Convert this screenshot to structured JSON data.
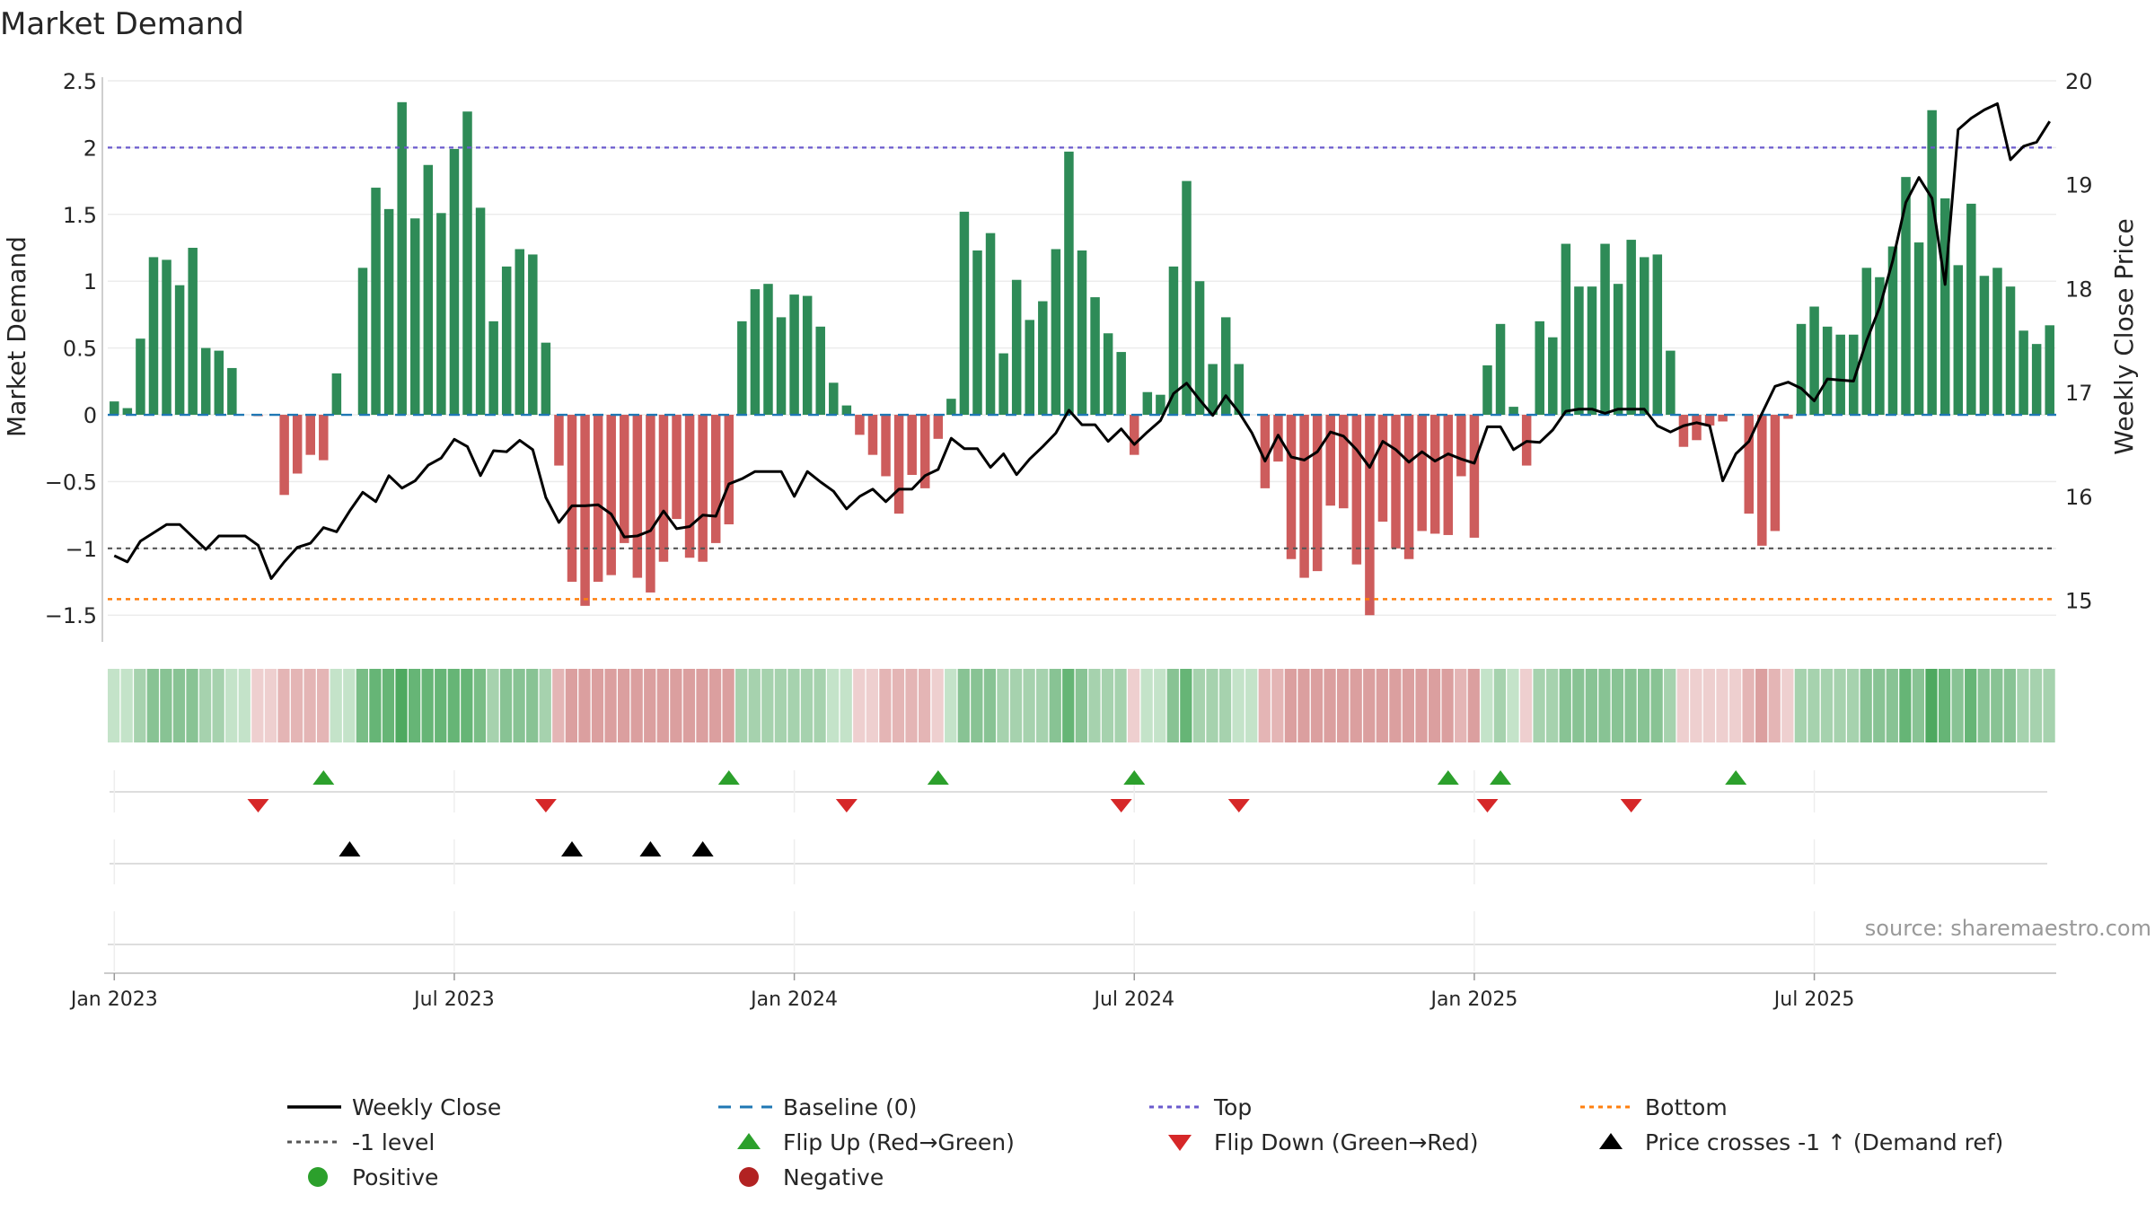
{
  "chart_data": {
    "type": "bar",
    "title": "Market Demand",
    "ylabel": "Market Demand",
    "y2label": "Weekly Close Price",
    "ylim": [
      -1.7,
      2.5
    ],
    "y2lim": [
      14.6,
      20.0
    ],
    "yticks": [
      2.5,
      2,
      1.5,
      1,
      0.5,
      0,
      -0.5,
      -1,
      -1.5
    ],
    "yticklabels": [
      "2.5",
      "2",
      "1.5",
      "1",
      "0.5",
      "0",
      "−0.5",
      "−1",
      "−1.5"
    ],
    "y2ticks": [
      20,
      19,
      18,
      17,
      16,
      15
    ],
    "y2ticklabels": [
      "20",
      "19",
      "18",
      "17",
      "16",
      "15"
    ],
    "xticklabels": [
      "Jan 2023",
      "Jul 2023",
      "Jan 2024",
      "Jul 2024",
      "Jan 2025",
      "Jul 2025"
    ],
    "xtick_positions_week": [
      0.5,
      26.5,
      52.5,
      78.5,
      104.5,
      130.5
    ],
    "reference_lines": {
      "top": 2.0,
      "bottom": -1.38,
      "minus_one": -1.0,
      "baseline": 0
    },
    "demand": [
      0.1,
      0.05,
      0.57,
      1.18,
      1.16,
      0.97,
      1.25,
      0.5,
      0.48,
      0.35,
      0.0,
      -0.01,
      0.0,
      -0.6,
      -0.44,
      -0.3,
      -0.34,
      0.31,
      0.0,
      1.1,
      1.7,
      1.54,
      2.34,
      1.47,
      1.87,
      1.51,
      1.99,
      2.27,
      1.55,
      0.7,
      1.11,
      1.24,
      1.2,
      0.54,
      -0.38,
      -1.25,
      -1.43,
      -1.25,
      -1.2,
      -0.96,
      -1.22,
      -1.33,
      -1.1,
      -0.78,
      -1.07,
      -1.1,
      -0.96,
      -0.82,
      0.7,
      0.94,
      0.98,
      0.73,
      0.9,
      0.89,
      0.66,
      0.24,
      0.07,
      -0.15,
      -0.3,
      -0.46,
      -0.74,
      -0.45,
      -0.55,
      -0.18,
      0.12,
      1.52,
      1.23,
      1.36,
      0.46,
      1.01,
      0.71,
      0.85,
      1.24,
      1.97,
      1.23,
      0.88,
      0.61,
      0.47,
      -0.3,
      0.17,
      0.15,
      1.11,
      1.75,
      1.0,
      0.38,
      0.73,
      0.38,
      0.0,
      -0.55,
      -0.35,
      -1.08,
      -1.22,
      -1.17,
      -0.68,
      -0.7,
      -1.12,
      -1.5,
      -0.8,
      -1.0,
      -1.08,
      -0.87,
      -0.89,
      -0.9,
      -0.46,
      -0.92,
      0.37,
      0.68,
      0.06,
      -0.38,
      0.7,
      0.58,
      1.28,
      0.96,
      0.96,
      1.28,
      0.98,
      1.31,
      1.18,
      1.2,
      0.48,
      -0.24,
      -0.19,
      -0.08,
      -0.05,
      0.0,
      -0.74,
      -0.98,
      -0.87,
      -0.03,
      0.68,
      0.81,
      0.66,
      0.6,
      0.6,
      1.1,
      1.03,
      1.26,
      1.78,
      1.29,
      2.28,
      1.62,
      1.12,
      1.58,
      1.04,
      1.1,
      0.96,
      0.63,
      0.53,
      0.67
    ],
    "weekly_close": [
      15.43,
      15.37,
      15.57,
      15.65,
      15.73,
      15.73,
      15.61,
      15.49,
      15.62,
      15.62,
      15.62,
      15.53,
      15.21,
      15.37,
      15.51,
      15.55,
      15.7,
      15.66,
      15.86,
      16.04,
      15.95,
      16.2,
      16.08,
      16.15,
      16.3,
      16.37,
      16.55,
      16.48,
      16.2,
      16.44,
      16.43,
      16.54,
      16.45,
      15.99,
      15.75,
      15.91,
      15.91,
      15.92,
      15.83,
      15.61,
      15.62,
      15.67,
      15.86,
      15.69,
      15.71,
      15.82,
      15.81,
      16.12,
      16.17,
      16.24,
      16.24,
      16.24,
      16.0,
      16.24,
      16.14,
      16.05,
      15.88,
      16.0,
      16.07,
      15.95,
      16.07,
      16.07,
      16.2,
      16.26,
      16.56,
      16.46,
      16.46,
      16.28,
      16.41,
      16.21,
      16.36,
      16.48,
      16.61,
      16.83,
      16.69,
      16.69,
      16.53,
      16.65,
      16.5,
      16.62,
      16.73,
      16.99,
      17.09,
      16.93,
      16.78,
      16.97,
      16.81,
      16.61,
      16.34,
      16.59,
      16.38,
      16.35,
      16.43,
      16.62,
      16.58,
      16.45,
      16.28,
      16.53,
      16.45,
      16.33,
      16.43,
      16.34,
      16.41,
      16.36,
      16.32,
      16.67,
      16.67,
      16.45,
      16.53,
      16.52,
      16.64,
      16.82,
      16.84,
      16.84,
      16.8,
      16.84,
      16.84,
      16.84,
      16.68,
      16.62,
      16.68,
      16.71,
      16.68,
      16.15,
      16.41,
      16.53,
      16.8,
      17.06,
      17.1,
      17.04,
      16.92,
      17.13,
      17.12,
      17.11,
      17.5,
      17.82,
      18.27,
      18.83,
      19.07,
      18.87,
      18.04,
      19.53,
      19.64,
      19.72,
      19.78,
      19.24,
      19.37,
      19.41,
      19.61
    ],
    "heat_colors": [
      "#c4e3c9",
      "#c4e3c9",
      "#a6d2ae",
      "#88c394",
      "#88c394",
      "#88c394",
      "#88c394",
      "#a6d2ae",
      "#a6d2ae",
      "#c4e3c9",
      "#c4e3c9",
      "#eecfcf",
      "#eecfcf",
      "#e4b5b5",
      "#e4b5b5",
      "#e4b5b5",
      "#e4b5b5",
      "#c4e3c9",
      "#c4e3c9",
      "#79bd86",
      "#66b576",
      "#66b576",
      "#4ea960",
      "#66b576",
      "#66b576",
      "#66b576",
      "#66b576",
      "#66b576",
      "#79bd86",
      "#a6d2ae",
      "#88c394",
      "#88c394",
      "#88c394",
      "#a6d2ae",
      "#e4b5b5",
      "#db9f9f",
      "#db9f9f",
      "#db9f9f",
      "#db9f9f",
      "#db9f9f",
      "#db9f9f",
      "#db9f9f",
      "#db9f9f",
      "#db9f9f",
      "#db9f9f",
      "#db9f9f",
      "#db9f9f",
      "#db9f9f",
      "#a6d2ae",
      "#a6d2ae",
      "#a6d2ae",
      "#a6d2ae",
      "#a6d2ae",
      "#a6d2ae",
      "#a6d2ae",
      "#c4e3c9",
      "#c4e3c9",
      "#eecfcf",
      "#eecfcf",
      "#e4b5b5",
      "#e4b5b5",
      "#e4b5b5",
      "#e4b5b5",
      "#eecfcf",
      "#c4e3c9",
      "#88c394",
      "#88c394",
      "#88c394",
      "#a6d2ae",
      "#a6d2ae",
      "#a6d2ae",
      "#a6d2ae",
      "#88c394",
      "#66b576",
      "#88c394",
      "#a6d2ae",
      "#a6d2ae",
      "#a6d2ae",
      "#eecfcf",
      "#c4e3c9",
      "#c4e3c9",
      "#88c394",
      "#66b576",
      "#a6d2ae",
      "#a6d2ae",
      "#a6d2ae",
      "#c4e3c9",
      "#c4e3c9",
      "#e4b5b5",
      "#e4b5b5",
      "#db9f9f",
      "#db9f9f",
      "#db9f9f",
      "#db9f9f",
      "#db9f9f",
      "#db9f9f",
      "#db9f9f",
      "#db9f9f",
      "#db9f9f",
      "#db9f9f",
      "#db9f9f",
      "#db9f9f",
      "#db9f9f",
      "#e4b5b5",
      "#db9f9f",
      "#c4e3c9",
      "#a6d2ae",
      "#c4e3c9",
      "#eecfcf",
      "#a6d2ae",
      "#a6d2ae",
      "#88c394",
      "#88c394",
      "#88c394",
      "#88c394",
      "#88c394",
      "#88c394",
      "#88c394",
      "#88c394",
      "#a6d2ae",
      "#eecfcf",
      "#eecfcf",
      "#eecfcf",
      "#eecfcf",
      "#eecfcf",
      "#e4b5b5",
      "#db9f9f",
      "#e4b5b5",
      "#eecfcf",
      "#a6d2ae",
      "#a6d2ae",
      "#a6d2ae",
      "#a6d2ae",
      "#a6d2ae",
      "#88c394",
      "#88c394",
      "#88c394",
      "#66b576",
      "#88c394",
      "#4ea960",
      "#66b576",
      "#88c394",
      "#66b576",
      "#88c394",
      "#88c394",
      "#88c394",
      "#a6d2ae",
      "#a6d2ae",
      "#a6d2ae"
    ],
    "flip_up_weeks": [
      16,
      47,
      63,
      78,
      102,
      106,
      124
    ],
    "flip_down_weeks": [
      11,
      33,
      56,
      77,
      86,
      105,
      116
    ],
    "cross_weeks": [
      18,
      35,
      41,
      45
    ],
    "legend": [
      {
        "label": "Weekly Close",
        "marker": "line",
        "color": "#000000"
      },
      {
        "label": "Baseline (0)",
        "marker": "dash",
        "color": "#1f77b4"
      },
      {
        "label": "Top",
        "marker": "dot-line",
        "color": "#6a5acd"
      },
      {
        "label": "Bottom",
        "marker": "dot-line",
        "color": "#ff7f0e"
      },
      {
        "label": "-1 level",
        "marker": "dot-line",
        "color": "#555555"
      },
      {
        "label": "Flip Up (Red→Green)",
        "marker": "triangle-up",
        "color": "#2ca02c"
      },
      {
        "label": "Flip Down (Green→Red)",
        "marker": "triangle-down",
        "color": "#d62728"
      },
      {
        "label": "Price crosses -1 ↑ (Demand ref)",
        "marker": "triangle-up",
        "color": "#000000"
      },
      {
        "label": "Positive",
        "marker": "circle",
        "color": "#2ca02c"
      },
      {
        "label": "Negative",
        "marker": "circle",
        "color": "#b22222"
      }
    ],
    "source": "source: sharemaestro.com"
  },
  "colors": {
    "positive_bar": "#2e8b57",
    "negative_bar": "#cd5c5c",
    "line": "#000000",
    "baseline": "#1f77b4",
    "top": "#6a5acd",
    "bottom": "#ff7f0e",
    "minus_one": "#555555",
    "flip_up": "#2ca02c",
    "flip_down": "#d62728",
    "cross": "#000000",
    "positive_dot": "#2ca02c",
    "negative_dot": "#b22222"
  }
}
